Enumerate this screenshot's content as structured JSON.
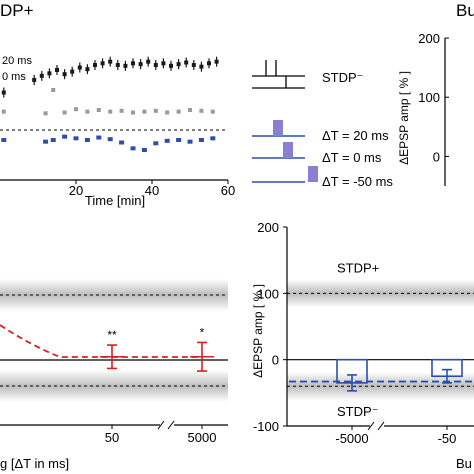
{
  "figure": {
    "panel_title_left": "DP+",
    "panel_title_right": "Bu",
    "timecourse_legend_left": [
      "20 ms",
      "0 ms"
    ]
  },
  "chart_data": [
    {
      "type": "scatter",
      "xlabel": "Time [min]",
      "ylabel": "",
      "xticks": [
        "20",
        "40",
        "60"
      ],
      "xlim": [
        0,
        60
      ],
      "ylim": [
        -60,
        120
      ],
      "baseline": 0,
      "series": [
        {
          "name": "",
          "color": "#1a1a1a",
          "x": [
            1,
            9,
            11,
            13,
            15,
            17,
            19,
            21,
            23,
            25,
            27,
            29,
            31,
            33,
            35,
            37,
            39,
            41,
            43,
            45,
            47,
            49,
            51,
            53,
            55,
            57
          ],
          "y": [
            45,
            60,
            65,
            68,
            72,
            67,
            70,
            75,
            73,
            78,
            80,
            82,
            78,
            77,
            80,
            79,
            82,
            78,
            80,
            77,
            79,
            81,
            78,
            76,
            80,
            82
          ]
        },
        {
          "name": "",
          "color": "#999999",
          "x": [
            1,
            12,
            14,
            17,
            20,
            23,
            26,
            29,
            32,
            35,
            38,
            41,
            44,
            47,
            50,
            53,
            56
          ],
          "y": [
            22,
            20,
            48,
            21,
            25,
            22,
            24,
            22,
            23,
            21,
            22,
            23,
            21,
            22,
            24,
            23,
            22
          ]
        },
        {
          "name": "",
          "color": "#2b4db0",
          "x": [
            1,
            12,
            14,
            17,
            20,
            23,
            26,
            29,
            32,
            35,
            38,
            41,
            44,
            47,
            50,
            53,
            56
          ],
          "y": [
            -12,
            -14,
            -12,
            -8,
            -10,
            -12,
            -9,
            -11,
            -15,
            -22,
            -24,
            -16,
            -13,
            -12,
            -14,
            -12,
            -10
          ]
        }
      ]
    },
    {
      "type": "scatter",
      "xlabel": "g [ΔT in ms]",
      "ylabel": "",
      "xticks": [
        "50",
        "5000"
      ],
      "bands": [
        {
          "y": 100,
          "label": ""
        },
        {
          "y": -40,
          "label": ""
        }
      ],
      "baseline": 0,
      "points": [
        {
          "x": "50",
          "y": 5,
          "err": 18,
          "annotation": "**",
          "color": "#d62020"
        },
        {
          "x": "5000",
          "y": 5,
          "err": 22,
          "annotation": "*",
          "color": "#d62020"
        }
      ],
      "fit": {
        "style": "dashed",
        "color": "#d62020"
      }
    },
    {
      "type": "bar",
      "xlabel": "Bu",
      "ylabel": "ΔEPSP amp [ % ]",
      "ylim": [
        -100,
        200
      ],
      "yticks": [
        "-100",
        "0",
        "100",
        "200"
      ],
      "xticks": [
        "-5000",
        "-50"
      ],
      "bands": [
        {
          "y": 100,
          "label": "STDP+"
        },
        {
          "y": -40,
          "label": "STDP⁻"
        }
      ],
      "categories": [
        "-5000",
        "-50"
      ],
      "values": [
        -35,
        -25
      ],
      "errors": [
        12,
        10
      ],
      "mean_line": -33,
      "color": "#2b4db0"
    },
    {
      "type": "line",
      "title": "",
      "ylabel": "ΔEPSP amp [ % ]",
      "yticks": [
        "0",
        "100",
        "200"
      ],
      "ylim": [
        -50,
        200
      ]
    }
  ],
  "protocol_legend": {
    "stdp_label": "STDP⁻",
    "items": [
      {
        "label": "ΔT = 20 ms",
        "spike_offset": 20
      },
      {
        "label": "ΔT = 0 ms",
        "spike_offset": 0
      },
      {
        "label": "ΔT = -50 ms",
        "spike_offset": -50
      }
    ],
    "colors": {
      "line": "#2b4db0",
      "spike": "#8b7fd0"
    }
  }
}
